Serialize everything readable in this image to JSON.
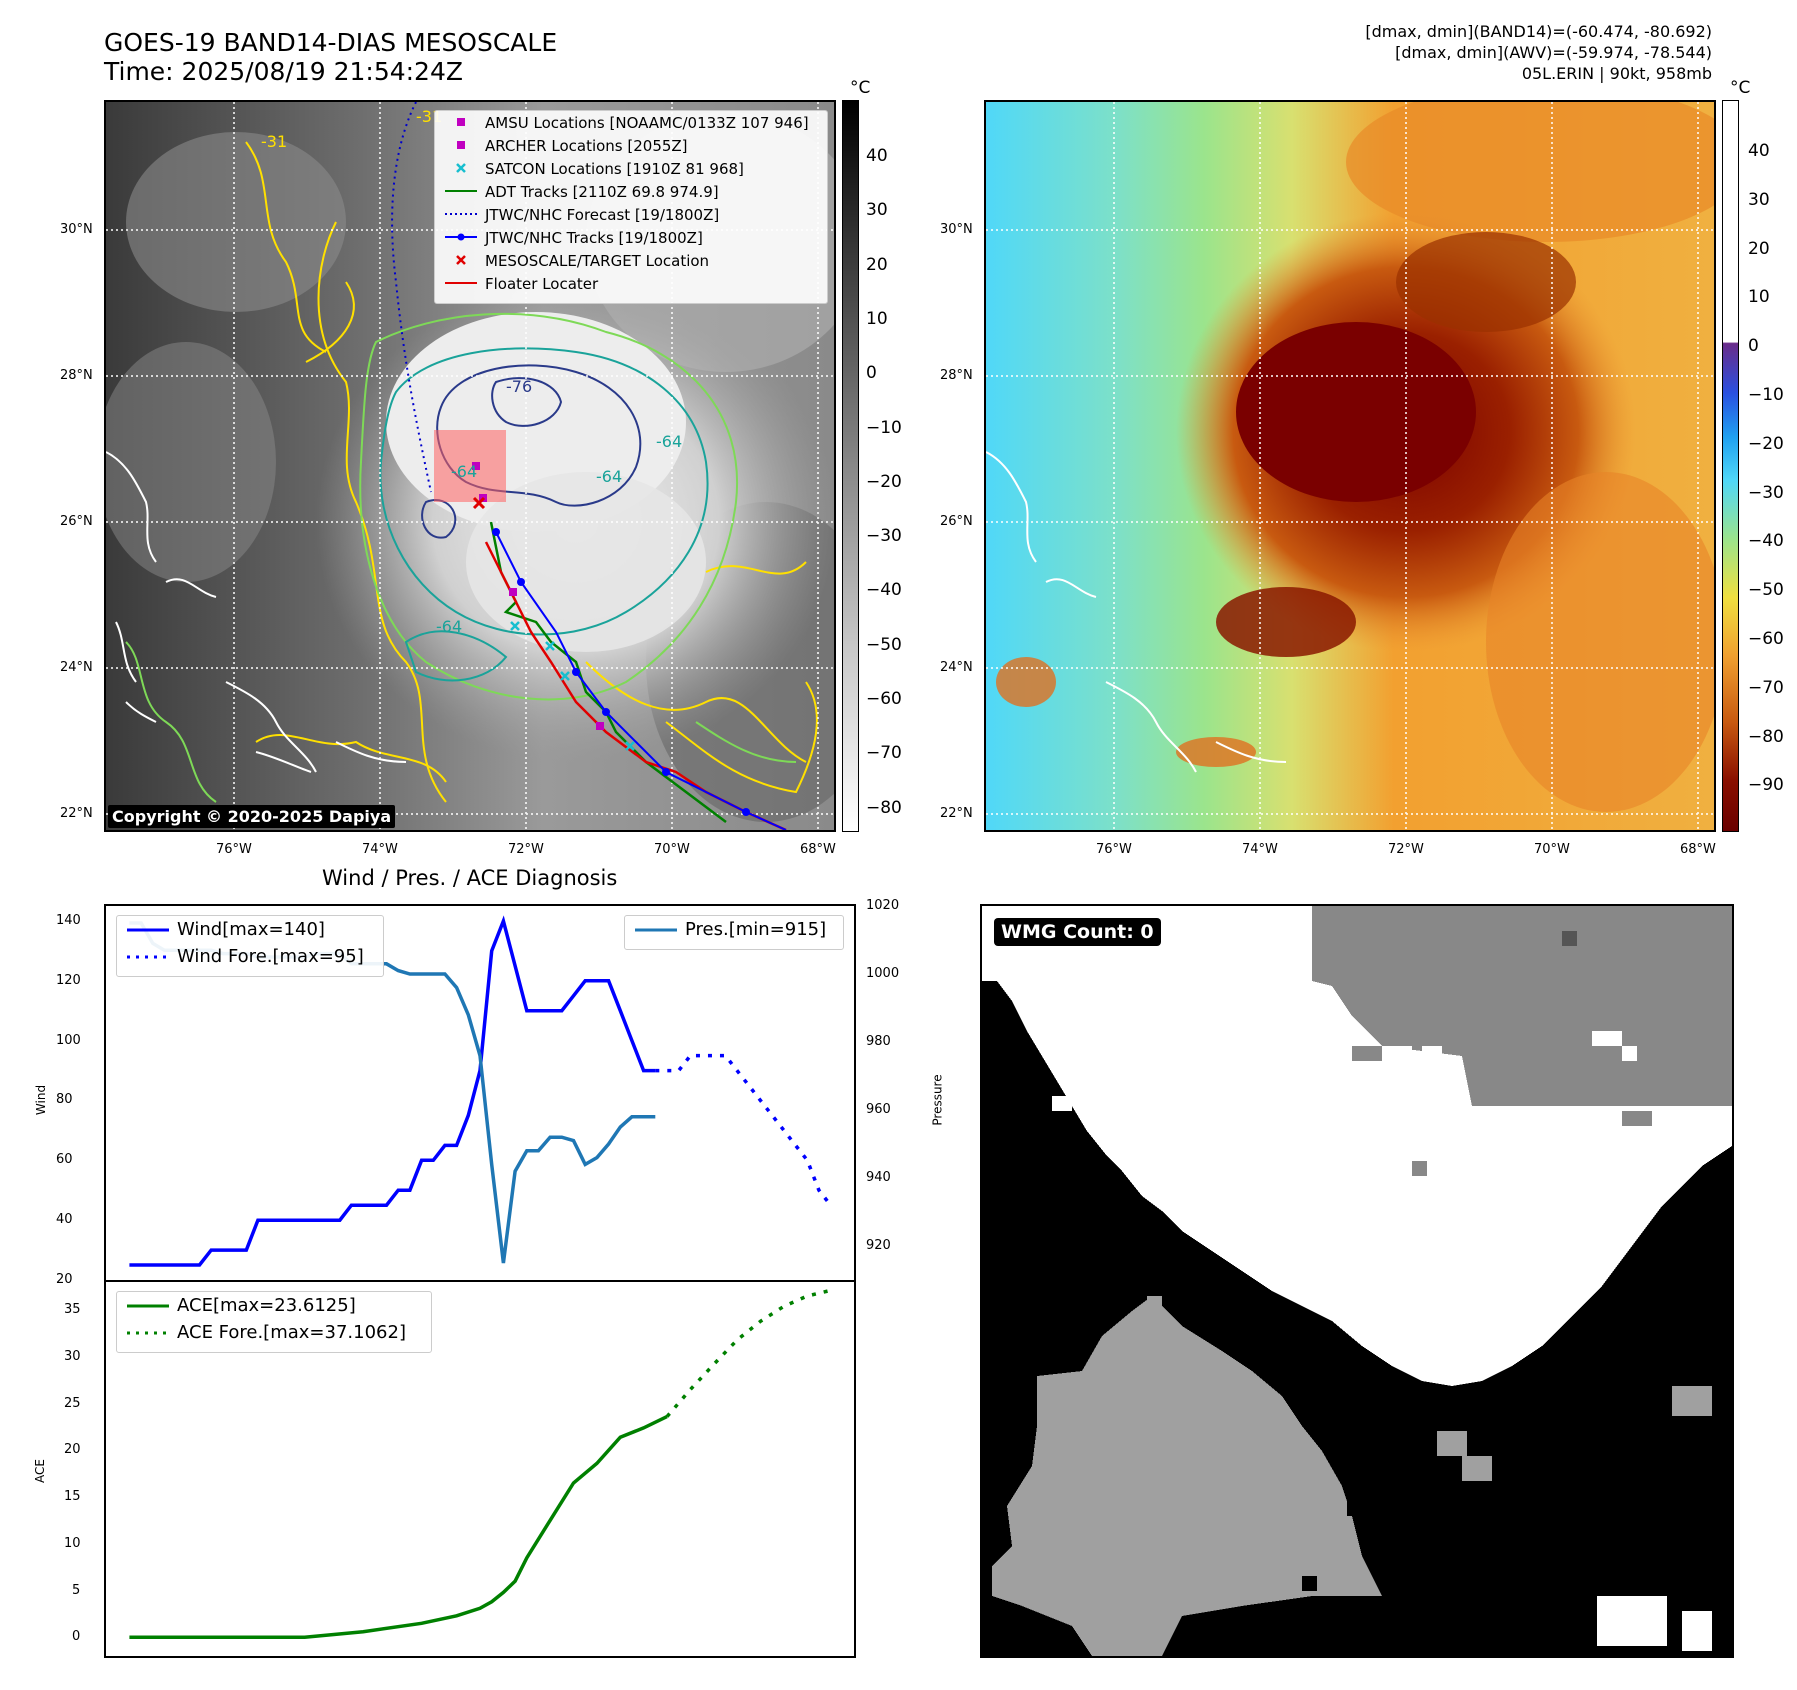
{
  "header": {
    "title_line1": "GOES-19 BAND14-DIAS MESOSCALE",
    "title_line2": "Time: 2025/08/19 21:54:24Z",
    "info_line1": "[dmax, dmin](BAND14)=(-60.474, -80.692)",
    "info_line2": "[dmax, dmin](AWV)=(-59.974, -78.544)",
    "info_line3": "05L.ERIN | 90kt, 958mb"
  },
  "map": {
    "lat_labels": [
      "30°N",
      "28°N",
      "26°N",
      "24°N",
      "22°N"
    ],
    "lon_labels": [
      "76°W",
      "74°W",
      "72°W",
      "70°W",
      "68°W"
    ],
    "contour_labels": [
      "-31",
      "-31",
      "-76",
      "-64",
      "-64",
      "-64",
      "-64"
    ],
    "copyright": "Copyright © 2020-2025 Dapiya"
  },
  "legend": {
    "items": [
      {
        "label": "AMSU Locations [NOAAMC/0133Z 107 946]",
        "color": "#c000c0",
        "icon": "square-marker"
      },
      {
        "label": "ARCHER Locations [2055Z]",
        "color": "#c000c0",
        "icon": "square-marker"
      },
      {
        "label": "SATCON Locations [1910Z 81 968]",
        "color": "#17becf",
        "icon": "x-marker"
      },
      {
        "label": "ADT Tracks [2110Z 69.8 974.9]",
        "color": "#008000",
        "icon": "line"
      },
      {
        "label": "JTWC/NHC Forecast [19/1800Z]",
        "color": "#0000cc",
        "icon": "dotted-line"
      },
      {
        "label": "JTWC/NHC Tracks [19/1800Z]",
        "color": "#0000ff",
        "icon": "line-dot"
      },
      {
        "label": "MESOSCALE/TARGET Location",
        "color": "#e00000",
        "icon": "x-marker"
      },
      {
        "label": "Floater Locater",
        "color": "#e00000",
        "icon": "line"
      }
    ]
  },
  "colorbar_left": {
    "unit": "°C",
    "ticks": [
      "40",
      "30",
      "20",
      "10",
      "0",
      "−10",
      "−20",
      "−30",
      "−40",
      "−50",
      "−60",
      "−70",
      "−80"
    ]
  },
  "colorbar_right": {
    "unit": "°C",
    "ticks": [
      "40",
      "30",
      "20",
      "10",
      "0",
      "−10",
      "−20",
      "−30",
      "−40",
      "−50",
      "−60",
      "−70",
      "−80",
      "−90"
    ]
  },
  "wmg": {
    "label": "WMG Count: 0"
  },
  "chart_data": [
    {
      "type": "line",
      "title": "Wind / Pres. / ACE Diagnosis",
      "ylabel": "Wind",
      "y2label": "Pressure",
      "ylim": [
        20,
        145
      ],
      "y2lim": [
        910,
        1020
      ],
      "yticks": [
        "140",
        "120",
        "100",
        "80",
        "60",
        "40",
        "20"
      ],
      "y2ticks": [
        "1020",
        "1000",
        "980",
        "960",
        "940",
        "920"
      ],
      "legend_left": [
        "Wind[max=140]",
        "Wind Fore.[max=95]"
      ],
      "legend_right": [
        "Pres.[min=915]"
      ],
      "series": [
        {
          "name": "Wind[max=140]",
          "color": "#0000ff",
          "style": "solid",
          "axis": "left",
          "x": [
            0,
            1,
            2,
            3,
            4,
            5,
            6,
            7,
            8,
            9,
            10,
            11,
            12,
            13,
            14,
            15,
            16,
            17,
            18,
            19,
            20,
            21,
            22,
            23,
            24,
            25,
            26,
            27,
            28,
            29,
            30,
            31,
            32,
            33,
            34,
            35,
            36,
            37,
            38,
            39,
            40,
            41,
            42,
            43,
            44,
            45
          ],
          "values": [
            25,
            25,
            25,
            25,
            25,
            25,
            25,
            30,
            30,
            30,
            30,
            40,
            40,
            40,
            40,
            40,
            40,
            40,
            40,
            45,
            45,
            45,
            45,
            50,
            50,
            60,
            60,
            65,
            65,
            75,
            90,
            130,
            140,
            125,
            110,
            110,
            110,
            110,
            115,
            120,
            120,
            120,
            110,
            100,
            90,
            90
          ]
        },
        {
          "name": "Wind Fore.[max=95]",
          "color": "#0000ff",
          "style": "dotted",
          "axis": "left",
          "x": [
            45,
            46,
            47,
            48,
            49,
            50,
            51,
            52,
            53,
            54,
            55,
            56,
            57,
            58,
            59,
            60
          ],
          "values": [
            90,
            90,
            90,
            95,
            95,
            95,
            95,
            90,
            85,
            80,
            75,
            70,
            65,
            60,
            50,
            45
          ]
        },
        {
          "name": "Pres.[min=915]",
          "color": "#1f77b4",
          "style": "solid",
          "axis": "right",
          "x": [
            0,
            1,
            2,
            3,
            4,
            5,
            6,
            7,
            8,
            9,
            10,
            11,
            12,
            13,
            14,
            15,
            16,
            17,
            18,
            19,
            20,
            21,
            22,
            23,
            24,
            25,
            26,
            27,
            28,
            29,
            30,
            31,
            32,
            33,
            34,
            35,
            36,
            37,
            38,
            39,
            40,
            41,
            42,
            43,
            44,
            45
          ],
          "values": [
            1015,
            1015,
            1009,
            1007,
            1007,
            1007,
            1007,
            1007,
            1006,
            1006,
            1006,
            1005,
            1005,
            1005,
            1005,
            1005,
            1006,
            1006,
            1006,
            1003,
            1003,
            1003,
            1003,
            1001,
            1000,
            1000,
            1000,
            1000,
            996,
            988,
            976,
            944,
            915,
            942,
            948,
            948,
            952,
            952,
            951,
            944,
            946,
            950,
            955,
            958,
            958,
            958
          ]
        }
      ]
    },
    {
      "type": "line",
      "ylabel": "ACE",
      "ylim": [
        -2,
        38
      ],
      "yticks": [
        "35",
        "30",
        "25",
        "20",
        "15",
        "10",
        "5",
        "0"
      ],
      "legend": [
        "ACE[max=23.6125]",
        "ACE Fore.[max=37.1062]"
      ],
      "series": [
        {
          "name": "ACE[max=23.6125]",
          "color": "#008000",
          "style": "solid",
          "x": [
            0,
            5,
            10,
            15,
            20,
            25,
            28,
            30,
            31,
            32,
            33,
            34,
            36,
            38,
            40,
            42,
            44,
            46
          ],
          "values": [
            0,
            0,
            0,
            0,
            0.6,
            1.5,
            2.3,
            3.1,
            3.8,
            4.8,
            6.0,
            8.5,
            12.5,
            16.5,
            18.6,
            21.4,
            22.4,
            23.6
          ]
        },
        {
          "name": "ACE Fore.[max=37.1062]",
          "color": "#008000",
          "style": "dotted",
          "x": [
            46,
            48,
            50,
            52,
            54,
            56,
            58,
            60
          ],
          "values": [
            23.6,
            26.5,
            29.2,
            31.8,
            33.8,
            35.4,
            36.5,
            37.1
          ]
        }
      ]
    }
  ]
}
